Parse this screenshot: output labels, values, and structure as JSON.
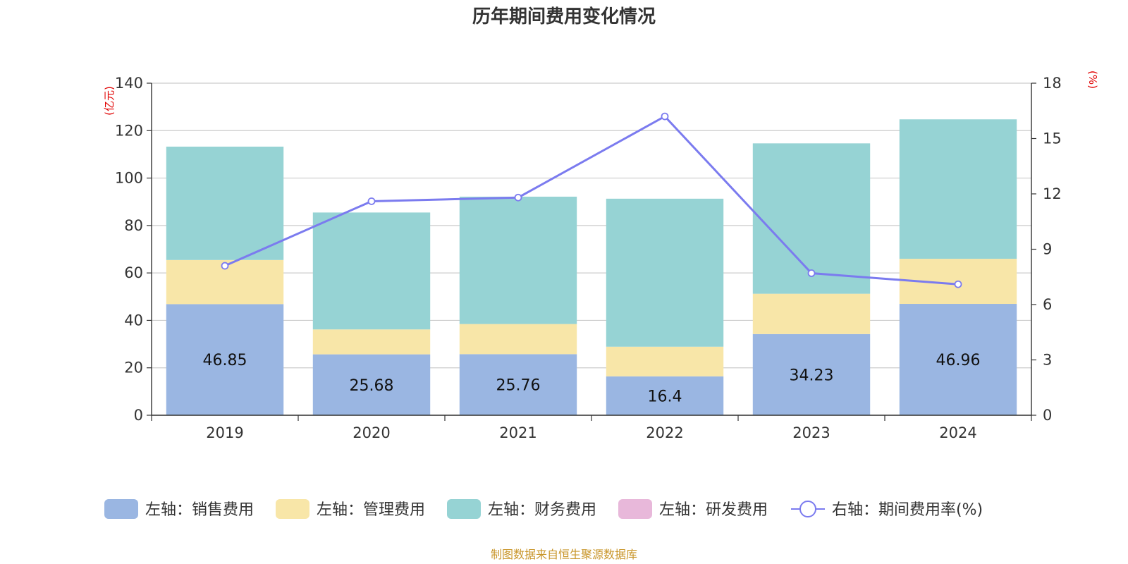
{
  "chart_data": {
    "type": "bar",
    "stacked": true,
    "title": "历年期间费用变化情况",
    "categories": [
      "2019",
      "2020",
      "2021",
      "2022",
      "2023",
      "2024"
    ],
    "left_axis": {
      "unit": "(亿元)",
      "ylim": [
        0,
        140
      ],
      "ticks": [
        "0",
        "20",
        "40",
        "60",
        "80",
        "100",
        "120",
        "140"
      ]
    },
    "right_axis": {
      "unit": "(%)",
      "ylim": [
        0,
        18
      ],
      "ticks": [
        "0",
        "3",
        "6",
        "9",
        "12",
        "15",
        "18"
      ]
    },
    "grid": true,
    "legend_position": "bottom",
    "series": [
      {
        "name": "左轴：销售费用",
        "axis": "left",
        "type": "bar",
        "color": "#9ab6e2",
        "values": [
          46.85,
          25.68,
          25.76,
          16.4,
          34.23,
          46.96
        ],
        "labels": [
          "46.85",
          "25.68",
          "25.76",
          "16.4",
          "34.23",
          "46.96"
        ]
      },
      {
        "name": "左轴：管理费用",
        "axis": "left",
        "type": "bar",
        "color": "#f8e6a8",
        "values": [
          18.6,
          10.5,
          12.7,
          12.5,
          17.0,
          19.0
        ]
      },
      {
        "name": "左轴：财务费用",
        "axis": "left",
        "type": "bar",
        "color": "#96d3d4",
        "values": [
          47.8,
          49.3,
          53.7,
          62.4,
          63.4,
          58.8
        ]
      },
      {
        "name": "左轴：研发费用",
        "axis": "left",
        "type": "bar",
        "color": "#e8b8da",
        "values": [
          0,
          0,
          0,
          0,
          0,
          0
        ]
      },
      {
        "name": "右轴：期间费用率(%)",
        "axis": "right",
        "type": "line",
        "color": "#7b7bef",
        "values": [
          8.1,
          11.6,
          11.8,
          16.2,
          7.7,
          7.1
        ]
      }
    ],
    "source": "制图数据来自恒生聚源数据库"
  }
}
